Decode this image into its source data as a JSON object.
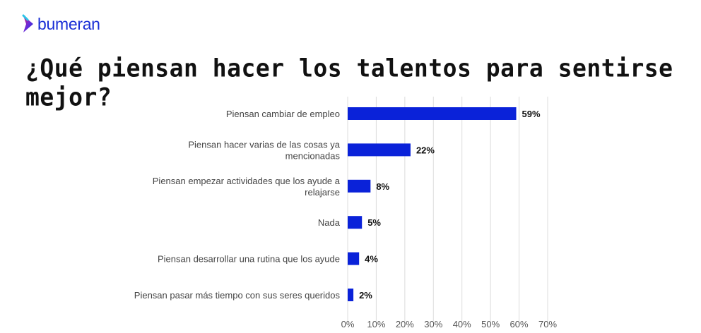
{
  "brand": {
    "name": "bumeran",
    "logo_colors": [
      "#e0186c",
      "#1a2fd6",
      "#2bc4e8"
    ]
  },
  "chart_data": {
    "type": "bar",
    "orientation": "horizontal",
    "title": "¿Qué piensan hacer los talentos para sentirse mejor?",
    "categories": [
      [
        "Piensan cambiar de empleo"
      ],
      [
        "Piensan hacer varias de las cosas ya",
        "mencionadas"
      ],
      [
        "Piensan empezar actividades que los ayude a",
        "relajarse"
      ],
      [
        "Nada"
      ],
      [
        "Piensan desarrollar una rutina que los ayude"
      ],
      [
        "Piensan pasar más tiempo con sus seres queridos"
      ]
    ],
    "values": [
      59,
      22,
      8,
      5,
      4,
      2
    ],
    "data_labels": [
      "59%",
      "22%",
      "8%",
      "5%",
      "4%",
      "2%"
    ],
    "xlim": [
      0,
      70
    ],
    "xticks": [
      "0%",
      "10%",
      "20%",
      "30%",
      "40%",
      "50%",
      "60%",
      "70%"
    ],
    "grid": true,
    "bar_color": "#0a22d9"
  }
}
